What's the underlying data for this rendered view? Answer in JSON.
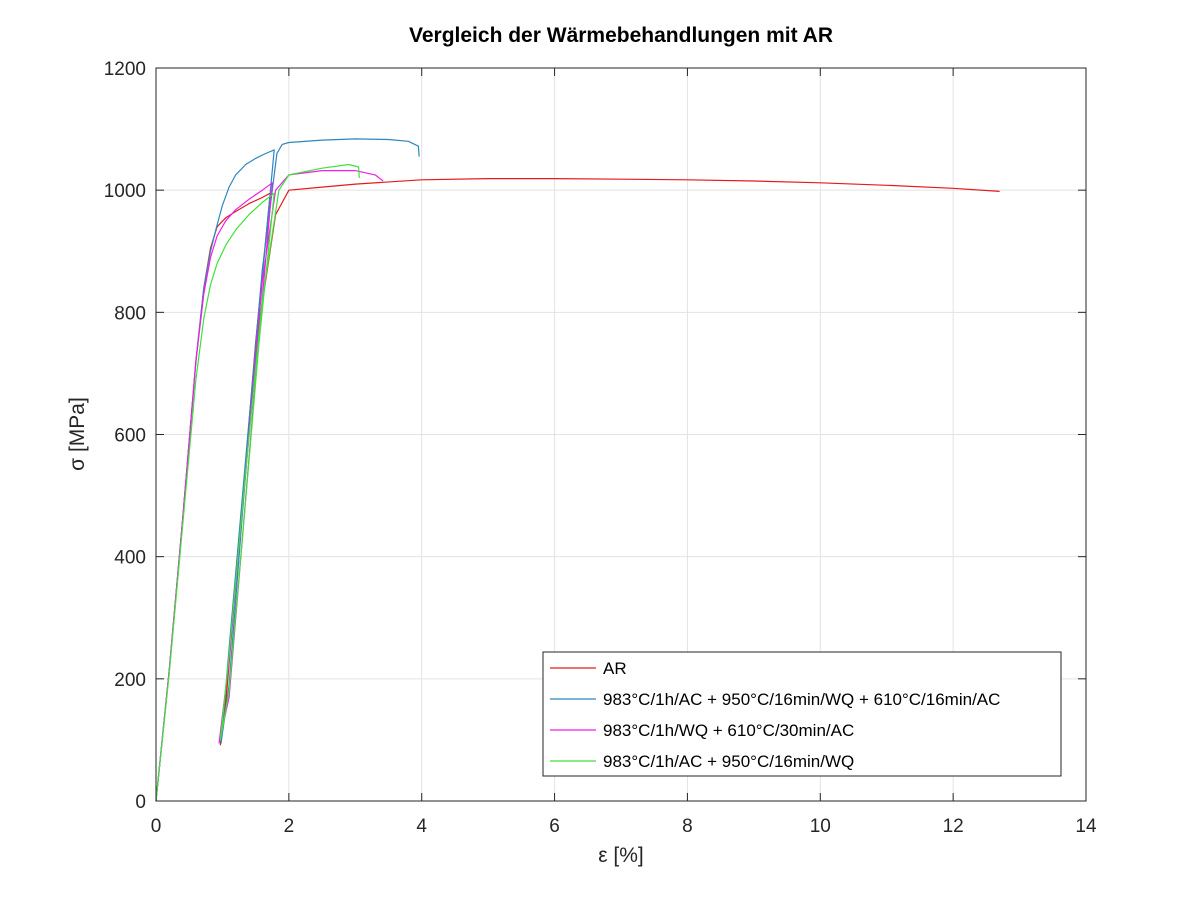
{
  "chart_data": {
    "type": "line",
    "title": "Vergleich der Wärmebehandlungen mit AR",
    "xlabel": "ε [%]",
    "ylabel": "σ [MPa]",
    "xlim": [
      0,
      14
    ],
    "ylim": [
      0,
      1200
    ],
    "xticks": [
      "0",
      "2",
      "4",
      "6",
      "8",
      "10",
      "12",
      "14"
    ],
    "yticks": [
      "0",
      "200",
      "400",
      "600",
      "800",
      "1000",
      "1200"
    ],
    "grid": true,
    "legend_position": "bottom-right",
    "series": [
      {
        "name": "AR",
        "color": "#e8191b",
        "x": [
          0,
          0.2,
          0.4,
          0.6,
          0.72,
          0.82,
          0.92,
          1.05,
          1.2,
          1.4,
          1.6,
          1.72,
          1.5,
          1.25,
          1.05,
          0.97,
          1.05,
          1.3,
          1.55,
          1.8,
          2.0,
          2.5,
          3.0,
          4.0,
          5.0,
          6.0,
          7.0,
          8.0,
          9.0,
          10.0,
          11.0,
          12.0,
          12.7
        ],
        "y": [
          0,
          215,
          460,
          720,
          840,
          905,
          940,
          955,
          965,
          978,
          988,
          995,
          750,
          420,
          160,
          92,
          180,
          480,
          780,
          960,
          1000,
          1005,
          1010,
          1017,
          1019,
          1019,
          1018,
          1017,
          1015,
          1012,
          1008,
          1003,
          998
        ]
      },
      {
        "name": "983°C/1h/AC + 950°C/16min/WQ + 610°C/16min/AC",
        "color": "#2e86c1",
        "x": [
          0,
          0.2,
          0.4,
          0.6,
          0.72,
          0.82,
          0.9,
          1.0,
          1.1,
          1.2,
          1.35,
          1.5,
          1.65,
          1.78,
          1.55,
          1.3,
          1.1,
          0.98,
          1.1,
          1.35,
          1.6,
          1.75,
          1.82,
          1.9,
          2.0,
          2.5,
          3.0,
          3.5,
          3.8,
          3.95,
          3.96
        ],
        "y": [
          0,
          215,
          460,
          720,
          840,
          900,
          935,
          975,
          1005,
          1025,
          1042,
          1052,
          1060,
          1066,
          800,
          470,
          190,
          95,
          250,
          560,
          870,
          1000,
          1060,
          1075,
          1078,
          1082,
          1084,
          1083,
          1080,
          1072,
          1055
        ]
      },
      {
        "name": "983°C/1h/WQ + 610°C/30min/AC",
        "color": "#ee1ee8",
        "x": [
          0,
          0.2,
          0.4,
          0.6,
          0.72,
          0.82,
          0.92,
          1.05,
          1.2,
          1.4,
          1.6,
          1.75,
          1.55,
          1.3,
          1.1,
          0.95,
          1.1,
          1.35,
          1.6,
          1.8,
          2.0,
          2.5,
          3.0,
          3.3,
          3.42
        ],
        "y": [
          0,
          215,
          460,
          720,
          830,
          890,
          925,
          950,
          968,
          985,
          1000,
          1012,
          760,
          430,
          170,
          95,
          230,
          540,
          850,
          1000,
          1025,
          1032,
          1032,
          1025,
          1015
        ]
      },
      {
        "name": "983°C/1h/AC + 950°C/16min/WQ",
        "color": "#3ee23a",
        "x": [
          0,
          0.2,
          0.4,
          0.6,
          0.72,
          0.82,
          0.92,
          1.05,
          1.2,
          1.4,
          1.6,
          1.72,
          1.78,
          1.55,
          1.3,
          1.1,
          0.97,
          1.1,
          1.35,
          1.6,
          1.85,
          2.0,
          2.5,
          2.9,
          3.05,
          3.06
        ],
        "y": [
          0,
          210,
          450,
          690,
          790,
          845,
          880,
          910,
          935,
          960,
          980,
          990,
          995,
          750,
          430,
          180,
          100,
          240,
          540,
          820,
          1000,
          1025,
          1036,
          1042,
          1038,
          1020
        ]
      }
    ]
  }
}
